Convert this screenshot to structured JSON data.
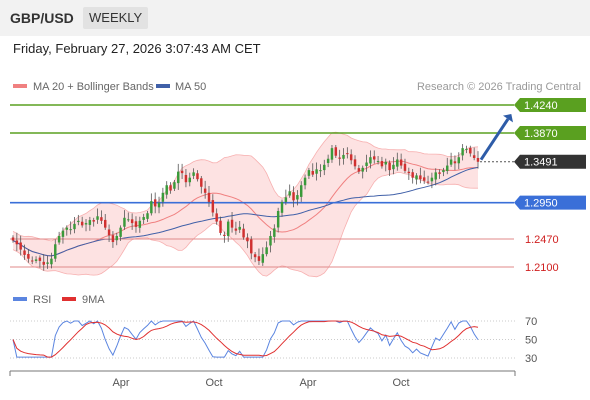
{
  "header": {
    "symbol": "GBP/USD",
    "timeframe": "WEEKLY",
    "datetime": "Friday, February 27, 2026 3:07:43 AM CET"
  },
  "colors": {
    "bollinger": "#f08080",
    "bollinger_fill": "#fde2e2",
    "ma50": "#4060a8",
    "resistance": "#5aa020",
    "support": "#3a6fd8",
    "support_weak": "#e08a8a",
    "support_weak_text": "#d02020",
    "last_price": "#333333",
    "candle_up": "#3a9a3a",
    "candle_down": "#d03030",
    "arrow": "#2e5ca8",
    "rsi": "#5b85e0",
    "rsi_ma": "#e03030",
    "watermark": "#999999"
  },
  "chart_data": [
    {
      "type": "line",
      "title": "",
      "legend": [
        {
          "name": "MA 20 + Bollinger Bands",
          "color": "#f08080"
        },
        {
          "name": "MA 50",
          "color": "#4060a8"
        }
      ],
      "legend_placement": "top-left",
      "watermark": "Research © 2026 Trading Central",
      "ylim": [
        1.18,
        1.45
      ],
      "y_axis": "right",
      "x_ticks": [
        "Apr",
        "Oct",
        "Apr",
        "Oct"
      ],
      "levels": [
        {
          "value": 1.424,
          "label": "1.4240",
          "kind": "resistance"
        },
        {
          "value": 1.387,
          "label": "1.3870",
          "kind": "resistance"
        },
        {
          "value": 1.3491,
          "label": "1.3491",
          "kind": "last"
        },
        {
          "value": 1.295,
          "label": "1.2950",
          "kind": "support"
        },
        {
          "value": 1.247,
          "label": "1.2470",
          "kind": "support_weak"
        },
        {
          "value": 1.21,
          "label": "1.2100",
          "kind": "support_weak"
        }
      ],
      "close": [
        1.245,
        1.24,
        1.233,
        1.226,
        1.221,
        1.218,
        1.22,
        1.218,
        1.213,
        1.216,
        1.221,
        1.24,
        1.251,
        1.258,
        1.262,
        1.26,
        1.267,
        1.271,
        1.265,
        1.268,
        1.272,
        1.27,
        1.277,
        1.271,
        1.262,
        1.252,
        1.243,
        1.251,
        1.262,
        1.275,
        1.273,
        1.268,
        1.263,
        1.271,
        1.276,
        1.281,
        1.297,
        1.29,
        1.295,
        1.308,
        1.318,
        1.311,
        1.322,
        1.336,
        1.334,
        1.322,
        1.328,
        1.335,
        1.326,
        1.316,
        1.308,
        1.296,
        1.282,
        1.27,
        1.255,
        1.251,
        1.27,
        1.262,
        1.258,
        1.263,
        1.249,
        1.244,
        1.228,
        1.223,
        1.218,
        1.227,
        1.236,
        1.251,
        1.261,
        1.284,
        1.296,
        1.302,
        1.31,
        1.298,
        1.305,
        1.318,
        1.328,
        1.338,
        1.332,
        1.339,
        1.338,
        1.345,
        1.353,
        1.367,
        1.357,
        1.353,
        1.358,
        1.36,
        1.351,
        1.343,
        1.336,
        1.341,
        1.348,
        1.355,
        1.352,
        1.35,
        1.343,
        1.349,
        1.338,
        1.345,
        1.352,
        1.344,
        1.337,
        1.334,
        1.328,
        1.331,
        1.326,
        1.324,
        1.322,
        1.328,
        1.335,
        1.333,
        1.338,
        1.344,
        1.352,
        1.347,
        1.355,
        1.367,
        1.366,
        1.36,
        1.354,
        1.349
      ]
    },
    {
      "type": "line",
      "title": "",
      "legend": [
        {
          "name": "RSI",
          "color": "#5b85e0"
        },
        {
          "name": "9MA",
          "color": "#e03030"
        }
      ],
      "legend_placement": "top-left",
      "ylim": [
        25,
        75
      ],
      "y_ticks": [
        "70",
        "50",
        "30"
      ],
      "grid": "dotted"
    }
  ],
  "axis": {
    "x_ticks": [
      "Apr",
      "Oct",
      "Apr",
      "Oct"
    ]
  }
}
